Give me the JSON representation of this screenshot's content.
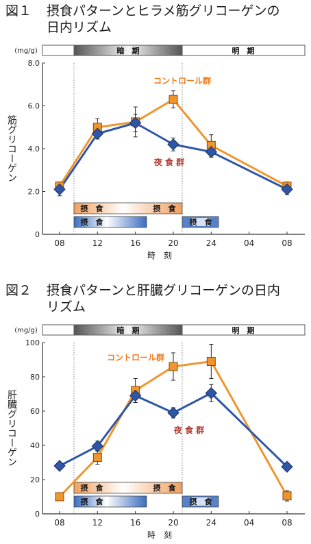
{
  "figures": [
    {
      "number": "図１",
      "title_line1": "摂食パターンとヒラメ筋グリコーゲンの",
      "title_line2": "日内リズム"
    },
    {
      "number": "図２",
      "title_line1": "摂食パターンと肝臓グリコーゲンの日内",
      "title_line2": "リズム"
    }
  ],
  "labels": {
    "dark_period": "暗　期",
    "light_period": "明　期",
    "feeding": "摂　食"
  },
  "colors": {
    "control": "#f0952e",
    "night": "#2e56a6",
    "control_text": "#f07a1a",
    "night_text": "#b03a2e",
    "feed_orange": "#f0a060",
    "feed_blue": "#3a6cc0"
  },
  "chart_data": [
    {
      "type": "line",
      "unit": "(mg/g)",
      "ylabel": "筋グリコーゲン",
      "xlabel": "時　刻",
      "x_ticks": [
        "08",
        "12",
        "16",
        "20",
        "24",
        "04",
        "08"
      ],
      "ylim": [
        0,
        8
      ],
      "y_ticks": [
        "0",
        "2.0",
        "4.0",
        "6.0",
        "8.0"
      ],
      "y_tick_values": [
        0,
        2,
        4,
        6,
        8
      ],
      "series": [
        {
          "name": "コントロール群",
          "key": "control",
          "x": [
            8,
            12,
            16,
            20,
            24,
            32
          ],
          "y": [
            2.25,
            5.0,
            5.25,
            6.3,
            4.15,
            2.25
          ],
          "err": [
            0.2,
            0.4,
            0.7,
            0.4,
            0.5,
            0.2
          ]
        },
        {
          "name": "夜 食 群",
          "key": "night",
          "x": [
            8,
            12,
            16,
            20,
            24,
            32
          ],
          "y": [
            2.1,
            4.7,
            5.2,
            4.2,
            3.85,
            2.1
          ],
          "err": [
            0.3,
            0.25,
            0.4,
            0.3,
            0.25,
            0.25
          ]
        }
      ]
    },
    {
      "type": "line",
      "unit": "(mg/g)",
      "ylabel": "肝臓グリコーゲン",
      "xlabel": "時　刻",
      "x_ticks": [
        "08",
        "12",
        "16",
        "20",
        "24",
        "04",
        "08"
      ],
      "ylim": [
        0,
        100
      ],
      "y_ticks": [
        "0",
        "20",
        "40",
        "60",
        "80",
        "100"
      ],
      "y_tick_values": [
        0,
        20,
        40,
        60,
        80,
        100
      ],
      "series": [
        {
          "name": "コントロール群",
          "key": "control",
          "x": [
            8,
            12,
            16,
            20,
            24,
            32
          ],
          "y": [
            10,
            33,
            72,
            86,
            89,
            10.5
          ],
          "err": [
            2,
            4,
            7,
            8,
            10,
            3
          ]
        },
        {
          "name": "夜 食 群",
          "key": "night",
          "x": [
            8,
            12,
            16,
            20,
            24,
            32
          ],
          "y": [
            28,
            39.5,
            69,
            59,
            70.5,
            27.5
          ],
          "err": [
            2,
            3,
            4,
            3,
            5,
            2
          ]
        }
      ]
    }
  ]
}
